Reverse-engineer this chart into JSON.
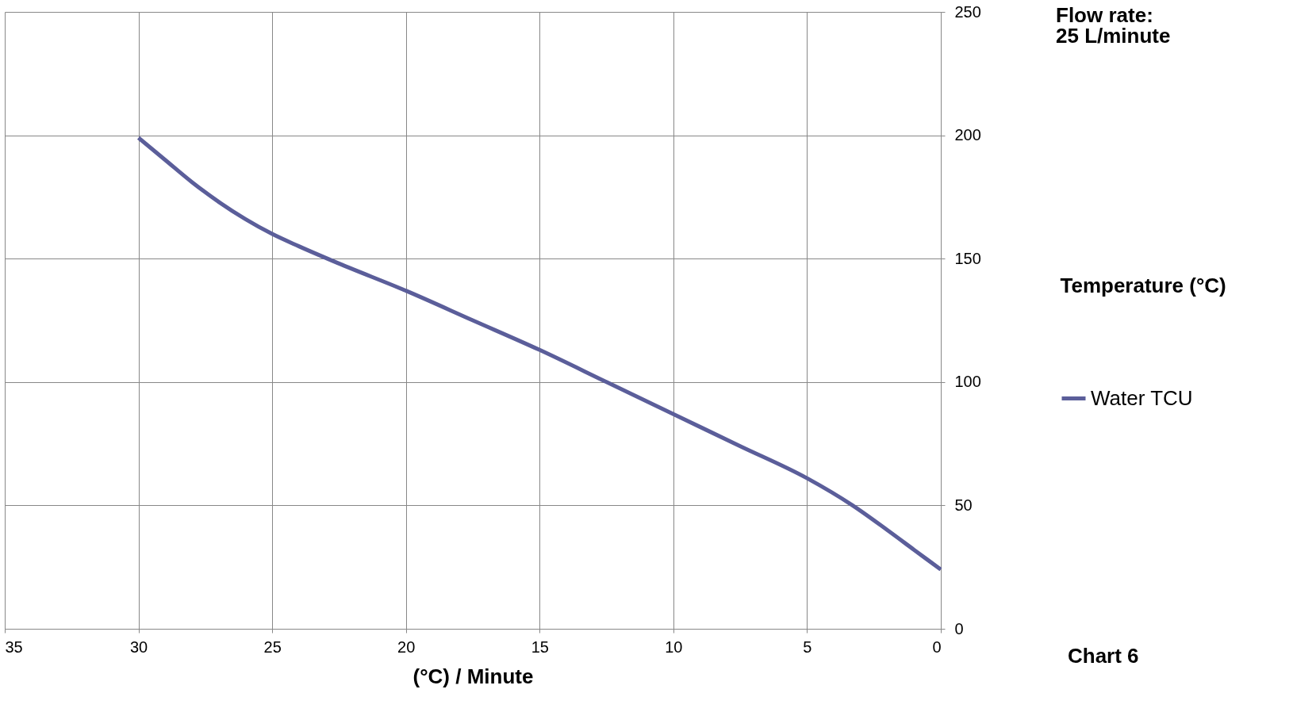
{
  "chart_data": {
    "type": "line",
    "title": "Flow rate:\n25 L/minute",
    "xlabel": "(°C) / Minute",
    "ylabel": "Temperature (°C)",
    "x": [
      30,
      29,
      28,
      27,
      26,
      25,
      24,
      22.5,
      20,
      17.5,
      15,
      12.5,
      10,
      7.5,
      5,
      3.3,
      2,
      1,
      0
    ],
    "series": [
      {
        "name": "Water TCU",
        "color": "#5b5e9a",
        "values": [
          199,
          190,
          181,
          173,
          166,
          160,
          155,
          148,
          137,
          125,
          113,
          100,
          87,
          74,
          61,
          50,
          40,
          32,
          24
        ]
      }
    ],
    "xlim": [
      35,
      0
    ],
    "xticks": [
      35,
      30,
      25,
      20,
      15,
      10,
      5,
      0
    ],
    "ylim": [
      0,
      250
    ],
    "yticks": [
      0,
      50,
      100,
      150,
      200,
      250
    ],
    "grid": true,
    "legend": "right",
    "marker": "none",
    "line_style": "solid",
    "annotations": [
      "Chart 6"
    ]
  }
}
